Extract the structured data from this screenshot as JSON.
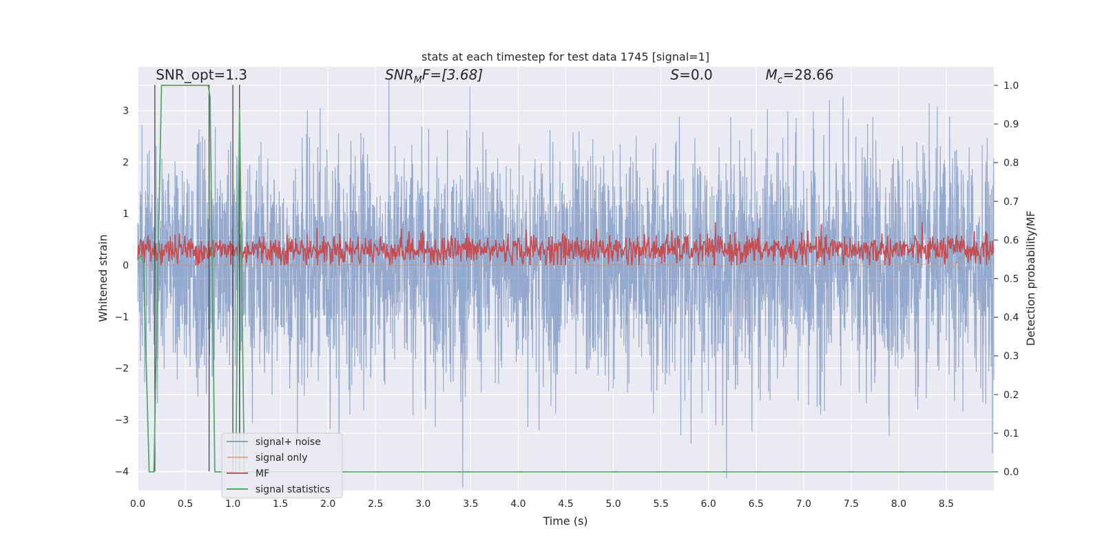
{
  "chart_data": {
    "type": "line",
    "title": "stats at each timestep for test data 1745 [signal=1]",
    "xlabel": "Time (s)",
    "ylabel": "Whitened strain",
    "ylabel_right": "Detection probability/MF",
    "xlim": [
      0.0,
      9.0
    ],
    "ylim": [
      -4.37,
      3.85
    ],
    "ylim_right": [
      -0.048,
      1.048
    ],
    "xticks": [
      "0.0",
      "0.5",
      "1.0",
      "1.5",
      "2.0",
      "2.5",
      "3.0",
      "3.5",
      "4.0",
      "4.5",
      "5.0",
      "5.5",
      "6.0",
      "6.5",
      "7.0",
      "7.5",
      "8.0",
      "8.5"
    ],
    "xtick_values": [
      0.0,
      0.5,
      1.0,
      1.5,
      2.0,
      2.5,
      3.0,
      3.5,
      4.0,
      4.5,
      5.0,
      5.5,
      6.0,
      6.5,
      7.0,
      7.5,
      8.0,
      8.5
    ],
    "yticks": [
      "3",
      "2",
      "1",
      "0",
      "−1",
      "−2",
      "−3",
      "−4"
    ],
    "ytick_values": [
      3,
      2,
      1,
      0,
      -1,
      -2,
      -3,
      -4
    ],
    "yticks_right": [
      "1.0",
      "0.9",
      "0.8",
      "0.7",
      "0.6",
      "0.5",
      "0.4",
      "0.3",
      "0.2",
      "0.1",
      "0.0"
    ],
    "ytick_right_values": [
      1.0,
      0.9,
      0.8,
      0.7,
      0.6,
      0.5,
      0.4,
      0.3,
      0.2,
      0.1,
      0.0
    ],
    "grid": true,
    "legend_position": "bottom-left",
    "annotations": [
      {
        "name": "snr-opt",
        "text": "SNR_opt=1.3",
        "x": 0.19
      },
      {
        "name": "snr-mf",
        "text": "SNR_MF=[3.68]",
        "x": 2.6
      },
      {
        "name": "s-value",
        "text": "S=0.0",
        "x": 5.6
      },
      {
        "name": "mc-value",
        "text": "M_c=28.66",
        "x": 6.6
      }
    ],
    "annotations_y": 3.6,
    "annotation_parts": {
      "snr_opt": "SNR_opt=1.3",
      "snr_mf_base": "SNR",
      "snr_mf_sub": "M",
      "snr_mf_rest": "F=[3.68]",
      "s_label": "S",
      "s_rest": "=0.0",
      "mc_base": "M",
      "mc_sub": "c",
      "mc_rest": "=28.66"
    },
    "noise_amplitude": 1.1,
    "mf_level": 0.3,
    "mf_amplitude": 0.25,
    "vertical_lines_x": [
      0.18,
      0.75,
      1.0,
      1.07
    ],
    "vertical_lines_y": [
      -4.0,
      3.5
    ],
    "chirp_end_x": 8.65,
    "series": [
      {
        "name": "signal+ noise",
        "color": "#4c72b0"
      },
      {
        "name": "signal only",
        "color": "#dd8452"
      },
      {
        "name": "MF",
        "color": "#c44e52"
      },
      {
        "name": "signal statistics",
        "color": "#55a868",
        "x": [
          0.0,
          0.04,
          0.06,
          0.12,
          0.17,
          0.25,
          0.74,
          0.76,
          0.81,
          1.0,
          1.03,
          1.07,
          1.12,
          1.16,
          9.0
        ],
        "y": [
          0.55,
          0.56,
          0.54,
          0.0,
          0.0,
          1.0,
          1.0,
          0.97,
          0.0,
          0.0,
          0.0,
          0.94,
          0.0,
          0.0,
          0.0
        ]
      }
    ]
  },
  "colors": {
    "plot_background": "#eaeaf2",
    "grid": "#ffffff",
    "text": "#262626"
  }
}
